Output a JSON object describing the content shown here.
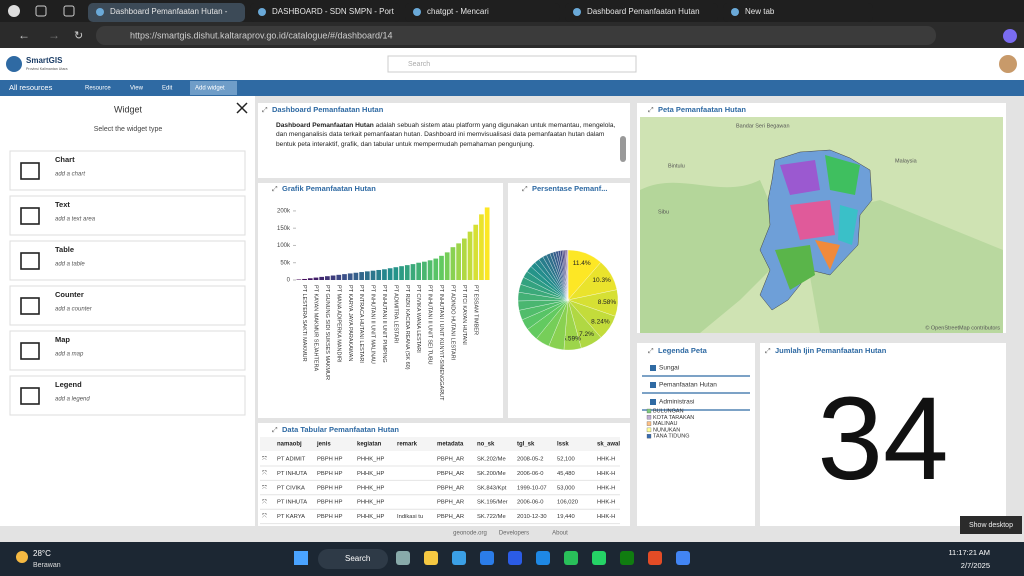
{
  "browser": {
    "tabs": [
      "Dashboard Pemanfaatan Hutan -",
      "DASHBOARD - SDN SMPN - Port",
      "chatgpt - Mencari",
      "Dashboard Pemanfaatan Hutan",
      "New tab"
    ],
    "url": "https://smartgis.dishut.kaltaraprov.go.id/catalogue/#/dashboard/14"
  },
  "app": {
    "name": "SmartGIS",
    "region": "Provinsi Kalimantan Utara",
    "search_placeholder": "Search"
  },
  "toolbar": [
    "All resources",
    "Resource",
    "View",
    "Edit",
    "Add widget"
  ],
  "sidebar": {
    "title": "Widget",
    "subtitle": "Select the widget type",
    "items": [
      {
        "name": "Chart",
        "description": "add a chart"
      },
      {
        "name": "Text",
        "description": "add a text area"
      },
      {
        "name": "Table",
        "description": "add a table"
      },
      {
        "name": "Counter",
        "description": "add a counter"
      },
      {
        "name": "Map",
        "description": "add a map"
      },
      {
        "name": "Legend",
        "description": "add a legend"
      }
    ]
  },
  "text_widget": {
    "title": "Dashboard Pemanfaatan Hutan",
    "lead": "Dashboard Pemanfaatan Hutan",
    "body": " adalah sebuah sistem atau platform yang digunakan untuk memantau, mengelola, dan menganalisis data terkait pemanfaatan hutan. Dashboard ini memvisualisasi data pemanfaatan hutan dalam bentuk peta interaktif, grafik, dan tabular untuk mempermudah pemahaman pengunjung."
  },
  "chart_data": [
    {
      "type": "bar",
      "title": "Grafik Pemanfaatan Hutan",
      "categories": [
        null,
        "PT LESTERA SAKTI MAKMUR",
        null,
        "PT KAYAN MAKMUR SEJAHTERA",
        null,
        "PT GUNUNG SIDI SUKSES MAKMUR",
        null,
        "PT MANA ADIPERKA MANDIRI",
        null,
        "PT KARYA JAYA PARAKAWAN",
        null,
        "PT INTRACA HUTANI LESTARI",
        null,
        "PT INHUTANI II UNIT MALINAU",
        null,
        "PT INHUTANI II UNIT PIMPING",
        null,
        "PT ADIMITRA LESTARI",
        null,
        "PT RIZKI KACIDA REANA (SK 60)",
        null,
        "PT CIVIKA WANA LESTARI",
        null,
        "PT INHUTANI II UNIT SEI TUBU",
        null,
        "PT INHUTANI I UNIT KUNYIT-SIMENGGARUT",
        null,
        "PT ADINDO HUTANI LESTARI",
        null,
        "PT ITCI KAYAN HUTANI",
        null,
        "PT ESSAM TIMBER",
        null,
        null
      ],
      "values": [
        1500,
        3000,
        5000,
        7000,
        9000,
        11000,
        13000,
        15000,
        17000,
        19000,
        21000,
        23000,
        25000,
        27000,
        29000,
        31000,
        34000,
        37000,
        40000,
        43000,
        46000,
        50000,
        53000,
        57000,
        62000,
        70000,
        80000,
        95000,
        106000,
        120000,
        140000,
        160000,
        190000,
        210000
      ],
      "color_scale": [
        "#440154",
        "#3b528b",
        "#21918c",
        "#5ec962",
        "#fde725"
      ],
      "ylim": [
        0,
        220000
      ],
      "yticks": [
        0,
        {
          "value": 50000,
          "label": "50k"
        },
        {
          "value": 100000,
          "label": "100k"
        },
        {
          "value": 150000,
          "label": "150k"
        },
        {
          "value": 200000,
          "label": "200k"
        }
      ],
      "grid": false
    },
    {
      "type": "pie",
      "title": "Persentase Pemanf...",
      "values": [
        11.4,
        10.3,
        8.58,
        8.24,
        7.2,
        5.59,
        5.0,
        4.6,
        4.1,
        3.5,
        3.2,
        3.0,
        2.8,
        2.6,
        2.4,
        2.2,
        2.0,
        1.8,
        1.6,
        1.5,
        1.3,
        1.2,
        1.0,
        0.9,
        0.8,
        0.7,
        0.6,
        0.5,
        0.4,
        0.3,
        0.25,
        0.2,
        0.15,
        0.1
      ],
      "value_labels": [
        "11.4%",
        "10.3%",
        "8.58%",
        "8.24%",
        "7.2%",
        "5.59%",
        null,
        null,
        null,
        null,
        null,
        null,
        null,
        null,
        null,
        null,
        null,
        null,
        null,
        null,
        null,
        null,
        null,
        null,
        null,
        null,
        null,
        null,
        null,
        null,
        null,
        null,
        null,
        null
      ],
      "color_scale": [
        "#440154",
        "#3b528b",
        "#21918c",
        "#5ec962",
        "#fde725"
      ]
    }
  ],
  "map_widget": {
    "title": "Peta Pemanfaatan Hutan",
    "places": [
      "Bandar Seri Begawan",
      "Malaysia",
      "Bintulu",
      "Sibu"
    ],
    "attribution": "© OpenStreetMap contributors"
  },
  "legend_widget": {
    "title": "Legenda Peta",
    "layers": [
      "Sungai",
      "Pemanfaatan Hutan",
      "Administrasi"
    ],
    "classes": [
      "BULUNGAN",
      "KOTA TARAKAN",
      "MALINAU",
      "NUNUKAN",
      "TANA TIDUNG"
    ]
  },
  "counter_widget": {
    "title": "Jumlah Ijin Pemanfaatan Hutan",
    "value": 34
  },
  "table_widget": {
    "title": "Data Tabular Pemanfaatan Hutan",
    "columns": [
      "namaobj",
      "jenis",
      "kegiatan",
      "remark",
      "metadata",
      "no_sk",
      "tgl_sk",
      "lssk",
      "sk_awal"
    ],
    "rows": [
      [
        "PT ADIMIT",
        "PBPH HP",
        "PHHK_HP",
        null,
        "PBPH_AR",
        "SK.202/Me",
        "2008-05-2",
        "52,100",
        "HHK-H"
      ],
      [
        "PT INHUTA",
        "PBPH HP",
        "PHHK_HP",
        null,
        "PBPH_AR",
        "SK.200/Me",
        "2006-06-0",
        "45,480",
        "HHK-H"
      ],
      [
        "PT CIVIKA",
        "PBPH HP",
        "PHHK_HP",
        null,
        "PBPH_AR",
        "SK.843/Kpt",
        "1999-10-07",
        "53,000",
        "HHK-H"
      ],
      [
        "PT INHUTA",
        "PBPH HP",
        "PHHK_HP",
        null,
        "PBPH_AR",
        "SK.195/Mer",
        "2006-06-0",
        "106,020",
        "HHK-H"
      ],
      [
        "PT KARYA",
        "PBPH HP",
        "PHHK_HP",
        "Indikasi tu",
        "PBPH_AR",
        "SK.722/Me",
        "2010-12-30",
        "19,440",
        "HHK-H"
      ]
    ]
  },
  "footer": [
    "geonode.org",
    "Developers",
    "About"
  ],
  "taskbar": {
    "temperature": "28°C",
    "weather": "Berawan",
    "search": "Search",
    "time": "11:17:21 AM",
    "date": "2/7/2025",
    "tooltip": "Show desktop"
  }
}
